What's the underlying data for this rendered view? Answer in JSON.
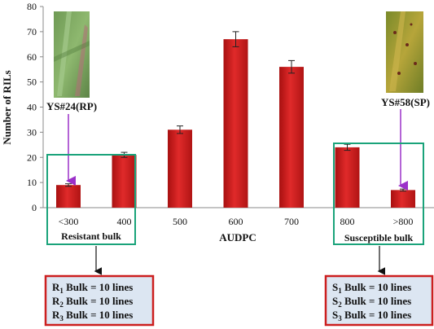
{
  "chart_data": {
    "type": "bar",
    "xlabel": "AUDPC",
    "ylabel": "Number of RILs",
    "ylim": [
      0,
      80
    ],
    "yticks": [
      0,
      10,
      20,
      30,
      40,
      50,
      60,
      70,
      80
    ],
    "grid": false,
    "categories": [
      "<300",
      "400",
      "500",
      "600",
      "700",
      "800",
      ">800"
    ],
    "values": [
      9,
      21,
      31,
      67,
      56,
      24,
      7
    ],
    "error": [
      0.5,
      1.0,
      1.5,
      3.0,
      2.5,
      1.2,
      0.4
    ],
    "bar_color": "#d41f1f"
  },
  "annotations": {
    "rp_label": "YS#24(RP)",
    "sp_label": "YS#58(SP)",
    "resistant_group": "Resistant bulk",
    "susceptible_group": "Susceptible bulk",
    "group_box_color": "#1aa37a",
    "arrow_color": "#9b30c9"
  },
  "bulks": {
    "resistant": [
      {
        "prefix": "R",
        "sub": "1",
        "text": " Bulk = 10 lines"
      },
      {
        "prefix": "R",
        "sub": "2",
        "text": " Bulk = 10 lines"
      },
      {
        "prefix": "R",
        "sub": "3",
        "text": " Bulk = 10 lines"
      }
    ],
    "susceptible": [
      {
        "prefix": "S",
        "sub": "1",
        "text": " Bulk = 10 lines"
      },
      {
        "prefix": "S",
        "sub": "2",
        "text": " Bulk = 10 lines"
      },
      {
        "prefix": "S",
        "sub": "3",
        "text": " Bulk = 10 lines"
      }
    ],
    "box_fill": "#dce6f2",
    "box_border": "#cc1f1f"
  }
}
